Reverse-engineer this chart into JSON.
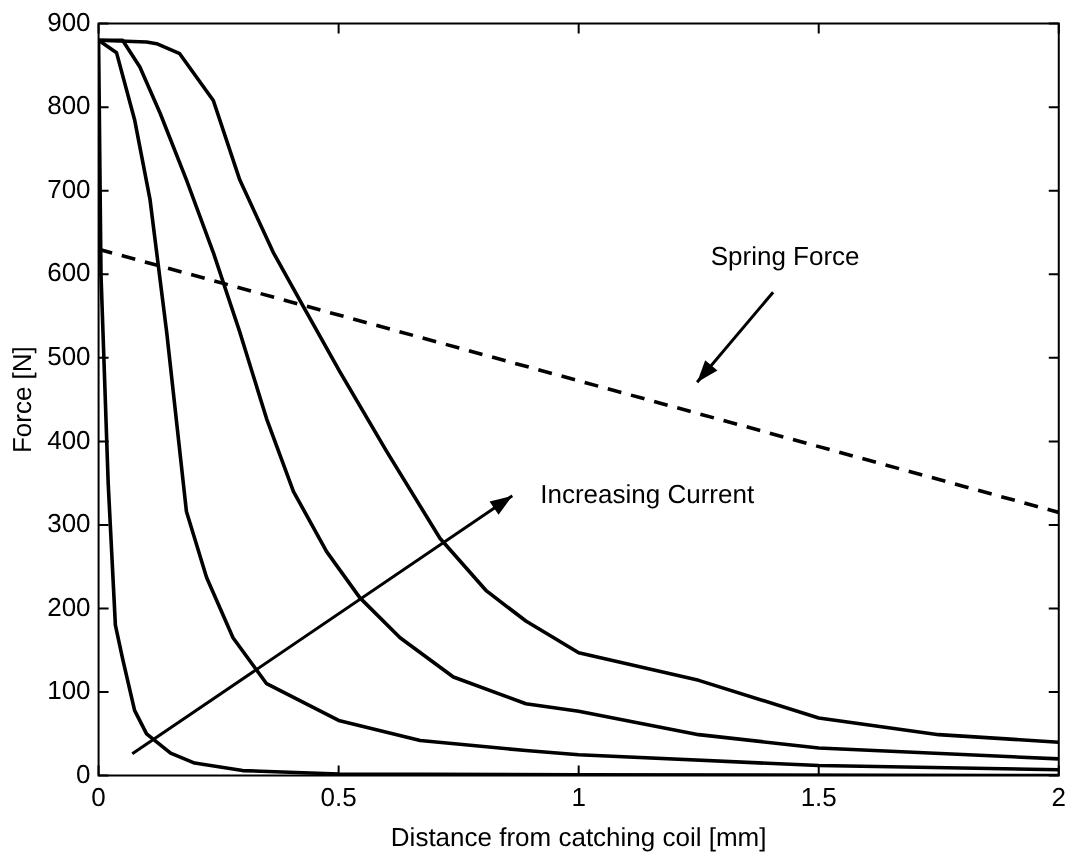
{
  "chart_data": {
    "type": "line",
    "xlabel": "Distance from catching coil [mm]",
    "ylabel": "Force [N]",
    "xlim": [
      0,
      2
    ],
    "xticks": [
      0,
      0.5,
      1,
      1.5,
      2
    ],
    "ylim": [
      0,
      900
    ],
    "yticks": [
      0,
      100,
      200,
      300,
      400,
      500,
      600,
      700,
      800,
      900
    ],
    "marker": "none",
    "legend": false,
    "series": [
      {
        "color": "#000000",
        "line_style": "solid",
        "x": [
          0,
          0.005,
          0.02,
          0.035,
          0.05,
          0.075,
          0.1,
          0.15,
          0.2,
          0.3,
          0.5,
          1,
          2
        ],
        "values": [
          880,
          600,
          350,
          180,
          140,
          78,
          50,
          27,
          15,
          6,
          2,
          1,
          0
        ]
      },
      {
        "color": "#000000",
        "line_style": "solid",
        "x": [
          0,
          0.0375,
          0.075,
          0.107,
          0.142,
          0.183,
          0.225,
          0.28,
          0.35,
          0.5,
          0.67,
          0.89,
          1,
          1.5,
          2
        ],
        "values": [
          880,
          865,
          785,
          690,
          530,
          316,
          237,
          165,
          110,
          66,
          42,
          30,
          25,
          12,
          7
        ]
      },
      {
        "color": "#000000",
        "line_style": "solid",
        "x": [
          0,
          0.05,
          0.086,
          0.128,
          0.183,
          0.239,
          0.294,
          0.35,
          0.406,
          0.475,
          0.544,
          0.628,
          0.739,
          0.89,
          1,
          1.25,
          1.5,
          2
        ],
        "values": [
          880,
          880,
          848,
          793,
          713,
          626,
          531,
          427,
          340,
          268,
          213,
          165,
          118,
          86,
          77,
          49,
          33,
          20
        ]
      },
      {
        "color": "#000000",
        "line_style": "solid",
        "x": [
          0,
          0.1,
          0.121,
          0.169,
          0.239,
          0.294,
          0.364,
          0.426,
          0.503,
          0.6,
          0.711,
          0.808,
          0.89,
          1,
          1.25,
          1.5,
          1.75,
          2
        ],
        "values": [
          880,
          878,
          876,
          864,
          808,
          713,
          626,
          562,
          483,
          388,
          284,
          221,
          185,
          147,
          114,
          69,
          49,
          40
        ]
      },
      {
        "color": "#000000",
        "line_style": "dashed",
        "x": [
          0,
          2
        ],
        "values": [
          630,
          315
        ]
      }
    ],
    "annotations": [
      "Spring Force",
      "Increasing Current"
    ]
  }
}
